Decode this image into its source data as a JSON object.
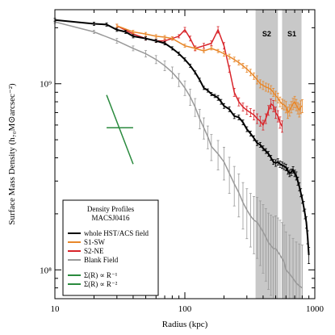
{
  "chart_data": {
    "type": "line",
    "xlabel": "Radius (kpc)",
    "ylabel": "Surface Mass Density (h₇₀M⊙arcsec⁻²)",
    "xscale": "log",
    "yscale": "log",
    "xlim": [
      10,
      1000
    ],
    "ylim": [
      70000000,
      2500000000
    ],
    "grid": false,
    "x_tick_labels": [
      {
        "value": 10,
        "label": "10"
      },
      {
        "value": 100,
        "label": "100"
      },
      {
        "value": 1000,
        "label": "1000"
      }
    ],
    "y_tick_labels": [
      {
        "value": 100000000,
        "label": "10⁸"
      },
      {
        "value": 1000000000,
        "label": "10⁹"
      }
    ],
    "shaded_bands": [
      {
        "label": "S2",
        "x_range": [
          350,
          520
        ],
        "color": "#c8c8c8"
      },
      {
        "label": "S1",
        "x_range": [
          560,
          790
        ],
        "color": "#c8c8c8"
      }
    ],
    "legend": {
      "position": "bottom-left",
      "title_lines": [
        "Density Profiles",
        "MACSJ0416"
      ]
    },
    "series": [
      {
        "name": "whole HST/ACS field",
        "color": "#000000",
        "x": [
          10,
          20,
          25,
          30,
          35,
          40,
          50,
          60,
          70,
          80,
          90,
          100,
          110,
          120,
          130,
          140,
          150,
          160,
          170,
          180,
          190,
          200,
          220,
          240,
          260,
          280,
          300,
          320,
          340,
          360,
          380,
          400,
          420,
          440,
          460,
          480,
          500,
          520,
          540,
          560,
          580,
          600,
          620,
          640,
          660,
          680,
          700,
          720,
          740,
          760,
          780,
          800,
          820,
          840,
          860,
          880,
          900
        ],
        "y": [
          2200000000.0,
          2100000000.0,
          2080000000.0,
          1950000000.0,
          1900000000.0,
          1800000000.0,
          1750000000.0,
          1700000000.0,
          1650000000.0,
          1550000000.0,
          1450000000.0,
          1350000000.0,
          1250000000.0,
          1150000000.0,
          1050000000.0,
          950000000.0,
          920000000.0,
          880000000.0,
          860000000.0,
          840000000.0,
          800000000.0,
          760000000.0,
          730000000.0,
          670000000.0,
          660000000.0,
          620000000.0,
          570000000.0,
          540000000.0,
          510000000.0,
          480000000.0,
          470000000.0,
          450000000.0,
          435000000.0,
          420000000.0,
          400000000.0,
          380000000.0,
          375000000.0,
          380000000.0,
          370000000.0,
          365000000.0,
          360000000.0,
          355000000.0,
          340000000.0,
          330000000.0,
          335000000.0,
          345000000.0,
          330000000.0,
          320000000.0,
          300000000.0,
          280000000.0,
          260000000.0,
          240000000.0,
          220000000.0,
          200000000.0,
          180000000.0,
          150000000.0,
          120000000.0
        ],
        "errors": [
          0.02,
          0.02,
          0.02,
          0.02,
          0.02,
          0.02,
          0.02,
          0.02,
          0.02,
          0.02,
          0.02,
          0.02,
          0.02,
          0.02,
          0.02,
          0.02,
          0.02,
          0.02,
          0.02,
          0.03,
          0.03,
          0.03,
          0.03,
          0.03,
          0.03,
          0.03,
          0.03,
          0.03,
          0.03,
          0.03,
          0.03,
          0.03,
          0.03,
          0.03,
          0.03,
          0.03,
          0.04,
          0.04,
          0.04,
          0.04,
          0.04,
          0.04,
          0.04,
          0.04,
          0.04,
          0.04,
          0.04,
          0.05,
          0.05,
          0.05,
          0.05,
          0.05,
          0.06,
          0.06,
          0.07,
          0.08,
          0.1
        ]
      },
      {
        "name": "S1-SW",
        "color": "#e8872a",
        "x": [
          30,
          40,
          50,
          60,
          70,
          80,
          100,
          120,
          140,
          160,
          180,
          200,
          220,
          240,
          260,
          280,
          300,
          320,
          340,
          360,
          380,
          400,
          420,
          440,
          460,
          480,
          500,
          520,
          540,
          560,
          580,
          600,
          620,
          640,
          660,
          680,
          700,
          720,
          740,
          760,
          780,
          800
        ],
        "y": [
          2050000000.0,
          1900000000.0,
          1850000000.0,
          1800000000.0,
          1780000000.0,
          1750000000.0,
          1600000000.0,
          1550000000.0,
          1500000000.0,
          1550000000.0,
          1500000000.0,
          1450000000.0,
          1400000000.0,
          1350000000.0,
          1300000000.0,
          1250000000.0,
          1200000000.0,
          1150000000.0,
          1100000000.0,
          1050000000.0,
          1000000000.0,
          980000000.0,
          960000000.0,
          950000000.0,
          930000000.0,
          900000000.0,
          860000000.0,
          840000000.0,
          800000000.0,
          780000000.0,
          770000000.0,
          750000000.0,
          700000000.0,
          720000000.0,
          750000000.0,
          780000000.0,
          800000000.0,
          770000000.0,
          740000000.0,
          720000000.0,
          750000000.0,
          760000000.0
        ],
        "errors": [
          0.02,
          0.02,
          0.02,
          0.02,
          0.02,
          0.02,
          0.02,
          0.02,
          0.02,
          0.02,
          0.02,
          0.03,
          0.03,
          0.03,
          0.03,
          0.03,
          0.04,
          0.04,
          0.04,
          0.05,
          0.05,
          0.05,
          0.05,
          0.05,
          0.05,
          0.05,
          0.06,
          0.06,
          0.06,
          0.06,
          0.06,
          0.07,
          0.07,
          0.07,
          0.07,
          0.07,
          0.07,
          0.07,
          0.07,
          0.08,
          0.08,
          0.08
        ]
      },
      {
        "name": "S2-NE",
        "color": "#d8242a",
        "x": [
          30,
          40,
          50,
          60,
          70,
          80,
          90,
          100,
          110,
          120,
          140,
          160,
          180,
          200,
          220,
          240,
          260,
          280,
          300,
          320,
          340,
          360,
          380,
          400,
          420,
          440,
          460,
          480,
          500,
          520,
          540,
          560
        ],
        "y": [
          2050000000.0,
          1850000000.0,
          1750000000.0,
          1700000000.0,
          1700000000.0,
          1750000000.0,
          1800000000.0,
          1950000000.0,
          1750000000.0,
          1550000000.0,
          1600000000.0,
          1650000000.0,
          1950000000.0,
          1600000000.0,
          1200000000.0,
          900000000.0,
          800000000.0,
          750000000.0,
          720000000.0,
          700000000.0,
          680000000.0,
          650000000.0,
          630000000.0,
          600000000.0,
          650000000.0,
          720000000.0,
          780000000.0,
          760000000.0,
          700000000.0,
          670000000.0,
          620000000.0,
          590000000.0
        ],
        "errors": [
          0.02,
          0.02,
          0.02,
          0.02,
          0.02,
          0.02,
          0.02,
          0.03,
          0.03,
          0.03,
          0.03,
          0.03,
          0.04,
          0.04,
          0.04,
          0.05,
          0.05,
          0.05,
          0.05,
          0.05,
          0.06,
          0.06,
          0.06,
          0.06,
          0.06,
          0.06,
          0.06,
          0.07,
          0.07,
          0.07,
          0.07,
          0.07
        ]
      },
      {
        "name": "Blank Field",
        "color": "#999999",
        "x": [
          10,
          20,
          30,
          40,
          50,
          60,
          70,
          80,
          90,
          100,
          110,
          120,
          130,
          140,
          150,
          160,
          180,
          200,
          220,
          240,
          260,
          280,
          300,
          320,
          340,
          360,
          380,
          400,
          420,
          440,
          460,
          480,
          500,
          520,
          540,
          560,
          580,
          600,
          640,
          680,
          720,
          760,
          800
        ],
        "y": [
          2150000000.0,
          1900000000.0,
          1700000000.0,
          1550000000.0,
          1450000000.0,
          1350000000.0,
          1250000000.0,
          1150000000.0,
          1050000000.0,
          950000000.0,
          850000000.0,
          750000000.0,
          650000000.0,
          580000000.0,
          520000000.0,
          460000000.0,
          420000000.0,
          380000000.0,
          330000000.0,
          290000000.0,
          260000000.0,
          230000000.0,
          210000000.0,
          195000000.0,
          185000000.0,
          180000000.0,
          170000000.0,
          160000000.0,
          150000000.0,
          140000000.0,
          135000000.0,
          130000000.0,
          130000000.0,
          125000000.0,
          120000000.0,
          115000000.0,
          110000000.0,
          100000000.0,
          95000000.0,
          90000000.0,
          85000000.0,
          82000000.0,
          80000000.0
        ],
        "errors": [
          0.02,
          0.02,
          0.03,
          0.03,
          0.04,
          0.05,
          0.06,
          0.07,
          0.08,
          0.09,
          0.1,
          0.11,
          0.12,
          0.13,
          0.14,
          0.16,
          0.18,
          0.2,
          0.22,
          0.24,
          0.26,
          0.28,
          0.3,
          0.32,
          0.34,
          0.36,
          0.38,
          0.4,
          0.42,
          0.44,
          0.46,
          0.48,
          0.5,
          0.52,
          0.54,
          0.56,
          0.58,
          0.6,
          0.62,
          0.64,
          0.66,
          0.68,
          0.7
        ]
      }
    ],
    "reference_lines": [
      {
        "name": "Σ(R) ∝ R⁻¹",
        "color": "#2a8a3e",
        "x": [
          25,
          40
        ],
        "y": [
          580000000.0,
          580000000.0
        ]
      },
      {
        "name": "Σ(R) ∝ R⁻²",
        "color": "#2a8a3e",
        "x": [
          25,
          40
        ],
        "y": [
          870000000.0,
          370000000.0
        ]
      }
    ]
  }
}
